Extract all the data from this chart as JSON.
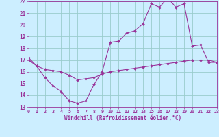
{
  "line1_x": [
    0,
    1,
    2,
    3,
    4,
    5,
    6,
    7,
    8,
    9,
    10,
    11,
    12,
    13,
    14,
    15,
    16,
    17,
    18,
    19,
    20,
    21,
    22,
    23
  ],
  "line1_y": [
    17.2,
    16.5,
    15.5,
    14.8,
    14.3,
    13.5,
    13.3,
    13.5,
    14.9,
    16.0,
    18.5,
    18.6,
    19.3,
    19.5,
    20.1,
    21.8,
    21.5,
    22.3,
    21.5,
    21.8,
    18.2,
    18.3,
    16.8,
    16.8
  ],
  "line2_x": [
    0,
    1,
    2,
    3,
    4,
    5,
    6,
    7,
    8,
    9,
    10,
    11,
    12,
    13,
    14,
    15,
    16,
    17,
    18,
    19,
    20,
    21,
    22,
    23
  ],
  "line2_y": [
    17.0,
    16.5,
    16.2,
    16.1,
    16.0,
    15.7,
    15.3,
    15.4,
    15.5,
    15.8,
    16.0,
    16.1,
    16.2,
    16.3,
    16.4,
    16.5,
    16.6,
    16.7,
    16.8,
    16.9,
    17.0,
    17.0,
    17.0,
    16.8
  ],
  "line_color": "#993399",
  "background_color": "#cceeff",
  "grid_color": "#99cccc",
  "xlabel": "Windchill (Refroidissement éolien,°C)",
  "ylim": [
    13,
    22
  ],
  "xlim": [
    0,
    23
  ],
  "yticks": [
    13,
    14,
    15,
    16,
    17,
    18,
    19,
    20,
    21,
    22
  ],
  "xticks": [
    0,
    1,
    2,
    3,
    4,
    5,
    6,
    7,
    8,
    9,
    10,
    11,
    12,
    13,
    14,
    15,
    16,
    17,
    18,
    19,
    20,
    21,
    22,
    23
  ]
}
